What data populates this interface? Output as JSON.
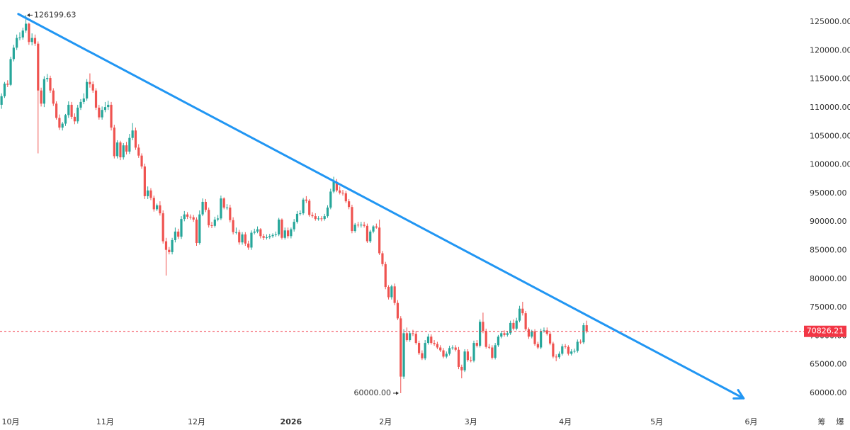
{
  "chart_data": {
    "type": "candlestick",
    "up_color": "#26a69a",
    "down_color": "#ef5350",
    "open": [
      110500,
      112000,
      114200,
      114000,
      118500,
      120500,
      122200,
      122300,
      123500,
      124700,
      121500,
      122200,
      121200,
      113000,
      110700,
      115000,
      115200,
      113000,
      110700,
      108200,
      106500,
      107200,
      108700,
      110500,
      108400,
      107600,
      110000,
      111000,
      111600,
      114500,
      114100,
      113000,
      110000,
      108300,
      109600,
      110100,
      110500,
      106500,
      101500,
      103900,
      101300,
      103400,
      102300,
      104700,
      106000,
      103000,
      101600,
      99700,
      94500,
      95500,
      94200,
      92200,
      92900,
      91500,
      86600,
      85100,
      84700,
      86800,
      88300,
      87400,
      90500,
      91300,
      90900,
      90800,
      90400,
      86300,
      91300,
      93500,
      92100,
      89400,
      89300,
      90400,
      90600,
      94100,
      92500,
      92500,
      90300,
      88200,
      88200,
      86400,
      87800,
      86200,
      85500,
      88100,
      88300,
      88700,
      87500,
      87200,
      87300,
      87500,
      87700,
      87800,
      90400,
      87200,
      88500,
      87500,
      88700,
      90000,
      91400,
      91500,
      93900,
      93700,
      91200,
      91000,
      90500,
      90600,
      90500,
      91000,
      92500,
      95300,
      97000,
      95500,
      95100,
      95000,
      93600,
      92600,
      88400,
      89500,
      89400,
      89500,
      89300,
      86600,
      88300,
      89200,
      89000,
      84500,
      82600,
      78600,
      76800,
      78700,
      75800,
      73100,
      62900,
      70500,
      69300,
      70500,
      70400,
      68800,
      67000,
      66100,
      68800,
      69900,
      68800,
      68600,
      68000,
      67500,
      66400,
      66900,
      67900,
      68000,
      67600,
      64600,
      64000,
      67300,
      65800,
      65700,
      68800,
      68300,
      72500,
      70900,
      68100,
      68000,
      66200,
      68400,
      69900,
      70500,
      70200,
      70500,
      72300,
      71300,
      72700,
      74800,
      74000,
      71200,
      69900,
      70800,
      68600,
      68000,
      70900,
      71000,
      70400,
      68700,
      66400,
      66300,
      66900,
      68200,
      68100,
      66900,
      67300,
      67400,
      69000,
      68900,
      71900
    ],
    "high": [
      112500,
      114500,
      114800,
      118900,
      121000,
      122800,
      123200,
      124000,
      126199.63,
      124900,
      123000,
      122800,
      121600,
      113500,
      115500,
      115900,
      115600,
      113400,
      111100,
      108800,
      107500,
      108900,
      111100,
      111000,
      109000,
      110500,
      111500,
      112500,
      115000,
      116000,
      114600,
      113400,
      110500,
      110200,
      111000,
      111200,
      111000,
      107000,
      104300,
      104200,
      103800,
      104000,
      105400,
      107300,
      106500,
      103600,
      102000,
      100200,
      96200,
      95900,
      94600,
      93200,
      93600,
      92000,
      87200,
      85600,
      87200,
      89000,
      88800,
      91000,
      91900,
      91700,
      91300,
      91200,
      90800,
      92000,
      94100,
      94000,
      92500,
      90000,
      90900,
      91200,
      94600,
      94300,
      93100,
      93000,
      90800,
      89000,
      88600,
      88200,
      88200,
      86700,
      88500,
      88800,
      89200,
      88900,
      87900,
      87800,
      87900,
      88000,
      88300,
      90700,
      90600,
      89000,
      89000,
      89000,
      90500,
      91900,
      92000,
      94200,
      94500,
      94000,
      91700,
      91500,
      91000,
      91000,
      91400,
      92900,
      95800,
      97900,
      97500,
      96200,
      95600,
      95400,
      94000,
      93000,
      89800,
      90000,
      90000,
      90000,
      89700,
      88600,
      89400,
      89700,
      90400,
      84900,
      83000,
      78900,
      79000,
      79200,
      76300,
      73500,
      71200,
      71500,
      70900,
      71100,
      70900,
      69200,
      67500,
      69300,
      70400,
      70300,
      69300,
      69000,
      68400,
      67900,
      67300,
      68300,
      68400,
      68400,
      68100,
      65000,
      67700,
      67700,
      66400,
      69200,
      69300,
      72900,
      74100,
      71300,
      68600,
      68400,
      68800,
      70200,
      70900,
      71000,
      70900,
      72700,
      72900,
      73200,
      75300,
      76000,
      74400,
      71500,
      71100,
      71200,
      69000,
      71300,
      71500,
      71500,
      70800,
      69000,
      66800,
      67300,
      68600,
      68600,
      68400,
      67700,
      67800,
      69400,
      69400,
      72300,
      72700
    ],
    "low": [
      109800,
      111700,
      113600,
      113800,
      118100,
      120100,
      121800,
      121900,
      123100,
      121000,
      120900,
      120800,
      102000,
      110200,
      110100,
      114500,
      112600,
      110300,
      107900,
      106100,
      106000,
      106800,
      108200,
      108000,
      107100,
      107200,
      109600,
      110600,
      111200,
      113500,
      112600,
      109600,
      107900,
      107900,
      109200,
      109600,
      106000,
      101100,
      101100,
      100800,
      100900,
      101800,
      101900,
      104300,
      102600,
      101200,
      99300,
      94000,
      94000,
      93800,
      91800,
      91900,
      91100,
      86200,
      80600,
      84300,
      84300,
      86400,
      87000,
      87000,
      90100,
      90500,
      90400,
      90000,
      85800,
      86000,
      91000,
      91700,
      89000,
      88900,
      89000,
      90100,
      90300,
      92200,
      92100,
      89900,
      87800,
      87800,
      86000,
      86000,
      85800,
      85100,
      85100,
      87800,
      88000,
      87100,
      86800,
      86900,
      87000,
      87200,
      87400,
      87500,
      86900,
      86900,
      87100,
      87100,
      88300,
      89700,
      91100,
      91200,
      93300,
      90900,
      90700,
      90200,
      90200,
      90100,
      90200,
      90700,
      92200,
      95000,
      95200,
      94800,
      94600,
      93300,
      92200,
      88000,
      88100,
      89000,
      89000,
      89000,
      86300,
      86300,
      88000,
      88800,
      84200,
      82200,
      78200,
      76400,
      76400,
      75400,
      72800,
      60000,
      62500,
      69000,
      69000,
      70000,
      68500,
      66700,
      65800,
      65800,
      68500,
      68500,
      68300,
      67700,
      67200,
      66100,
      66100,
      66600,
      67600,
      67300,
      64200,
      62600,
      63700,
      65500,
      65400,
      65400,
      68000,
      68000,
      70500,
      67800,
      67700,
      65900,
      65900,
      68100,
      69600,
      69900,
      69900,
      70200,
      71000,
      71000,
      72400,
      73600,
      70900,
      69500,
      69600,
      68300,
      67700,
      67700,
      70600,
      70100,
      68400,
      66100,
      65600,
      66000,
      66600,
      67800,
      66600,
      66600,
      67000,
      67100,
      68600,
      68600,
      70500
    ],
    "close": [
      112000,
      114200,
      114000,
      118500,
      120500,
      122200,
      122300,
      123500,
      124700,
      121500,
      122200,
      121200,
      113000,
      110700,
      115000,
      115200,
      113000,
      110700,
      108200,
      106500,
      107200,
      108700,
      110500,
      108400,
      107600,
      110000,
      111000,
      111600,
      114500,
      114100,
      113000,
      110000,
      108300,
      109600,
      110100,
      110500,
      106500,
      101500,
      103900,
      101300,
      103400,
      102300,
      104700,
      106000,
      103000,
      101600,
      99700,
      94500,
      95500,
      94200,
      92200,
      92900,
      91500,
      86600,
      85100,
      84700,
      86800,
      88300,
      87400,
      90500,
      91300,
      90900,
      90800,
      90400,
      86300,
      91300,
      93500,
      92100,
      89400,
      89300,
      90400,
      90600,
      94100,
      92500,
      92500,
      90300,
      88200,
      88200,
      86400,
      87800,
      86200,
      85500,
      88100,
      88300,
      88700,
      87500,
      87200,
      87300,
      87500,
      87700,
      87800,
      90400,
      87200,
      88500,
      87500,
      88700,
      90000,
      91400,
      91500,
      93900,
      93700,
      91200,
      91000,
      90500,
      90600,
      90500,
      91000,
      92500,
      95300,
      97000,
      95500,
      95100,
      95000,
      93600,
      92600,
      88400,
      89500,
      89400,
      89500,
      89300,
      86600,
      88300,
      89200,
      89000,
      84500,
      82600,
      78600,
      76800,
      78700,
      75800,
      73100,
      62900,
      70500,
      69300,
      70500,
      70400,
      68800,
      67000,
      66100,
      68800,
      69900,
      68800,
      68600,
      68000,
      67500,
      66400,
      66900,
      67900,
      68000,
      67600,
      64600,
      64000,
      67300,
      65800,
      65700,
      68800,
      68300,
      72500,
      70900,
      68100,
      68000,
      66200,
      68400,
      69900,
      70500,
      70200,
      70500,
      72300,
      71300,
      72700,
      74800,
      74000,
      71200,
      69900,
      70800,
      68600,
      68000,
      70900,
      71000,
      70400,
      68700,
      66400,
      66300,
      66900,
      68200,
      68100,
      66900,
      67300,
      67400,
      69000,
      68900,
      71900,
      70826.21
    ],
    "xlim": [
      -0.5,
      257.5
    ],
    "xticks": [
      {
        "value": 3,
        "label": "10月"
      },
      {
        "value": 34,
        "label": "11月"
      },
      {
        "value": 64,
        "label": "12月"
      },
      {
        "value": 95,
        "label": "2026"
      },
      {
        "value": 126,
        "label": "2月"
      },
      {
        "value": 154,
        "label": "3月"
      },
      {
        "value": 185,
        "label": "4月"
      },
      {
        "value": 215,
        "label": "5月"
      },
      {
        "value": 246,
        "label": "6月"
      }
    ],
    "ylim": [
      56900,
      128850
    ],
    "yticks": [
      {
        "value": 60000,
        "label": "60000.00"
      },
      {
        "value": 65000,
        "label": "65000.00"
      },
      {
        "value": 70000,
        "label": "70000.00"
      },
      {
        "value": 75000,
        "label": "75000.00"
      },
      {
        "value": 80000,
        "label": "80000.00"
      },
      {
        "value": 85000,
        "label": "85000.00"
      },
      {
        "value": 90000,
        "label": "90000.00"
      },
      {
        "value": 95000,
        "label": "95000.00"
      },
      {
        "value": 100000,
        "label": "100000.00"
      },
      {
        "value": 105000,
        "label": "105000.00"
      },
      {
        "value": 110000,
        "label": "110000.00"
      },
      {
        "value": 115000,
        "label": "115000.00"
      },
      {
        "value": 120000,
        "label": "120000.00"
      },
      {
        "value": 125000,
        "label": "125000.00"
      }
    ],
    "high_label": 126199.63,
    "low_label": {
      "value": 60000,
      "label": "60000.00"
    },
    "last_price": 70826.21,
    "last_price_color": "#f23645",
    "trendline": {
      "color": "#2196f3",
      "points": [
        [
          5.5,
          126400
        ],
        [
          243.5,
          59100
        ]
      ]
    }
  },
  "toolbar": [
    "筹",
    "爆"
  ]
}
